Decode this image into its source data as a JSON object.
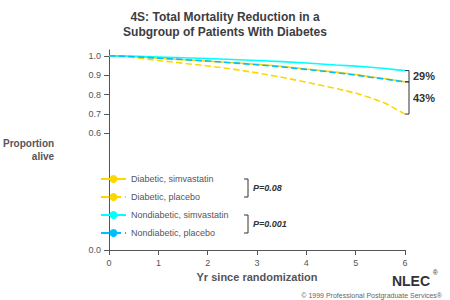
{
  "chart_data": {
    "type": "line",
    "title": "4S: Total Mortality Reduction in a\nSubgroup of Patients With Diabetes",
    "xlabel": "Yr since randomization",
    "ylabel": "Proportion\nalive",
    "x": [
      0,
      0.3,
      0.6,
      1.0,
      1.5,
      2.0,
      2.5,
      3.0,
      3.5,
      4.0,
      4.3,
      4.6,
      5.0,
      5.3,
      5.6,
      5.8,
      6.0
    ],
    "series": [
      {
        "name": "Diabetic, simvastatin",
        "color": "#FFD700",
        "line_style": "solid",
        "values": [
          1.0,
          0.998,
          0.994,
          0.988,
          0.98,
          0.972,
          0.964,
          0.956,
          0.946,
          0.932,
          0.924,
          0.916,
          0.904,
          0.892,
          0.882,
          0.874,
          0.866
        ]
      },
      {
        "name": "Diabetic, placebo",
        "color": "#FFD700",
        "line_style": "dashed",
        "values": [
          1.0,
          0.996,
          0.988,
          0.976,
          0.962,
          0.948,
          0.932,
          0.912,
          0.89,
          0.864,
          0.848,
          0.832,
          0.808,
          0.784,
          0.756,
          0.728,
          0.7
        ]
      },
      {
        "name": "Nondiabetic, simvastatin",
        "color": "#00FFFF",
        "line_style": "solid",
        "values": [
          1.0,
          0.999,
          0.997,
          0.994,
          0.99,
          0.986,
          0.981,
          0.976,
          0.97,
          0.963,
          0.958,
          0.953,
          0.947,
          0.941,
          0.935,
          0.929,
          0.924
        ]
      },
      {
        "name": "Nondiabetic, placebo",
        "color": "#00BFFF",
        "line_style": "dashed",
        "values": [
          1.0,
          0.998,
          0.994,
          0.988,
          0.981,
          0.973,
          0.964,
          0.954,
          0.943,
          0.93,
          0.922,
          0.913,
          0.901,
          0.89,
          0.88,
          0.873,
          0.866
        ]
      }
    ],
    "xlim": [
      0,
      6
    ],
    "ylim": [
      0.0,
      1.03
    ],
    "xticks": [
      0,
      1,
      2,
      3,
      4,
      5,
      6
    ],
    "yticks": [
      {
        "value": 0.0,
        "label": "0.0"
      },
      0.6,
      0.7,
      0.8,
      0.9,
      {
        "value": 1.0,
        "label": "1.0"
      }
    ],
    "grid": false,
    "legend": "lower left",
    "annotations": [
      "P=0.08",
      "P=0.001",
      "29%",
      "43%",
      "NLEC",
      "®",
      "© 1999 Professional Postgraduate Services®"
    ]
  }
}
